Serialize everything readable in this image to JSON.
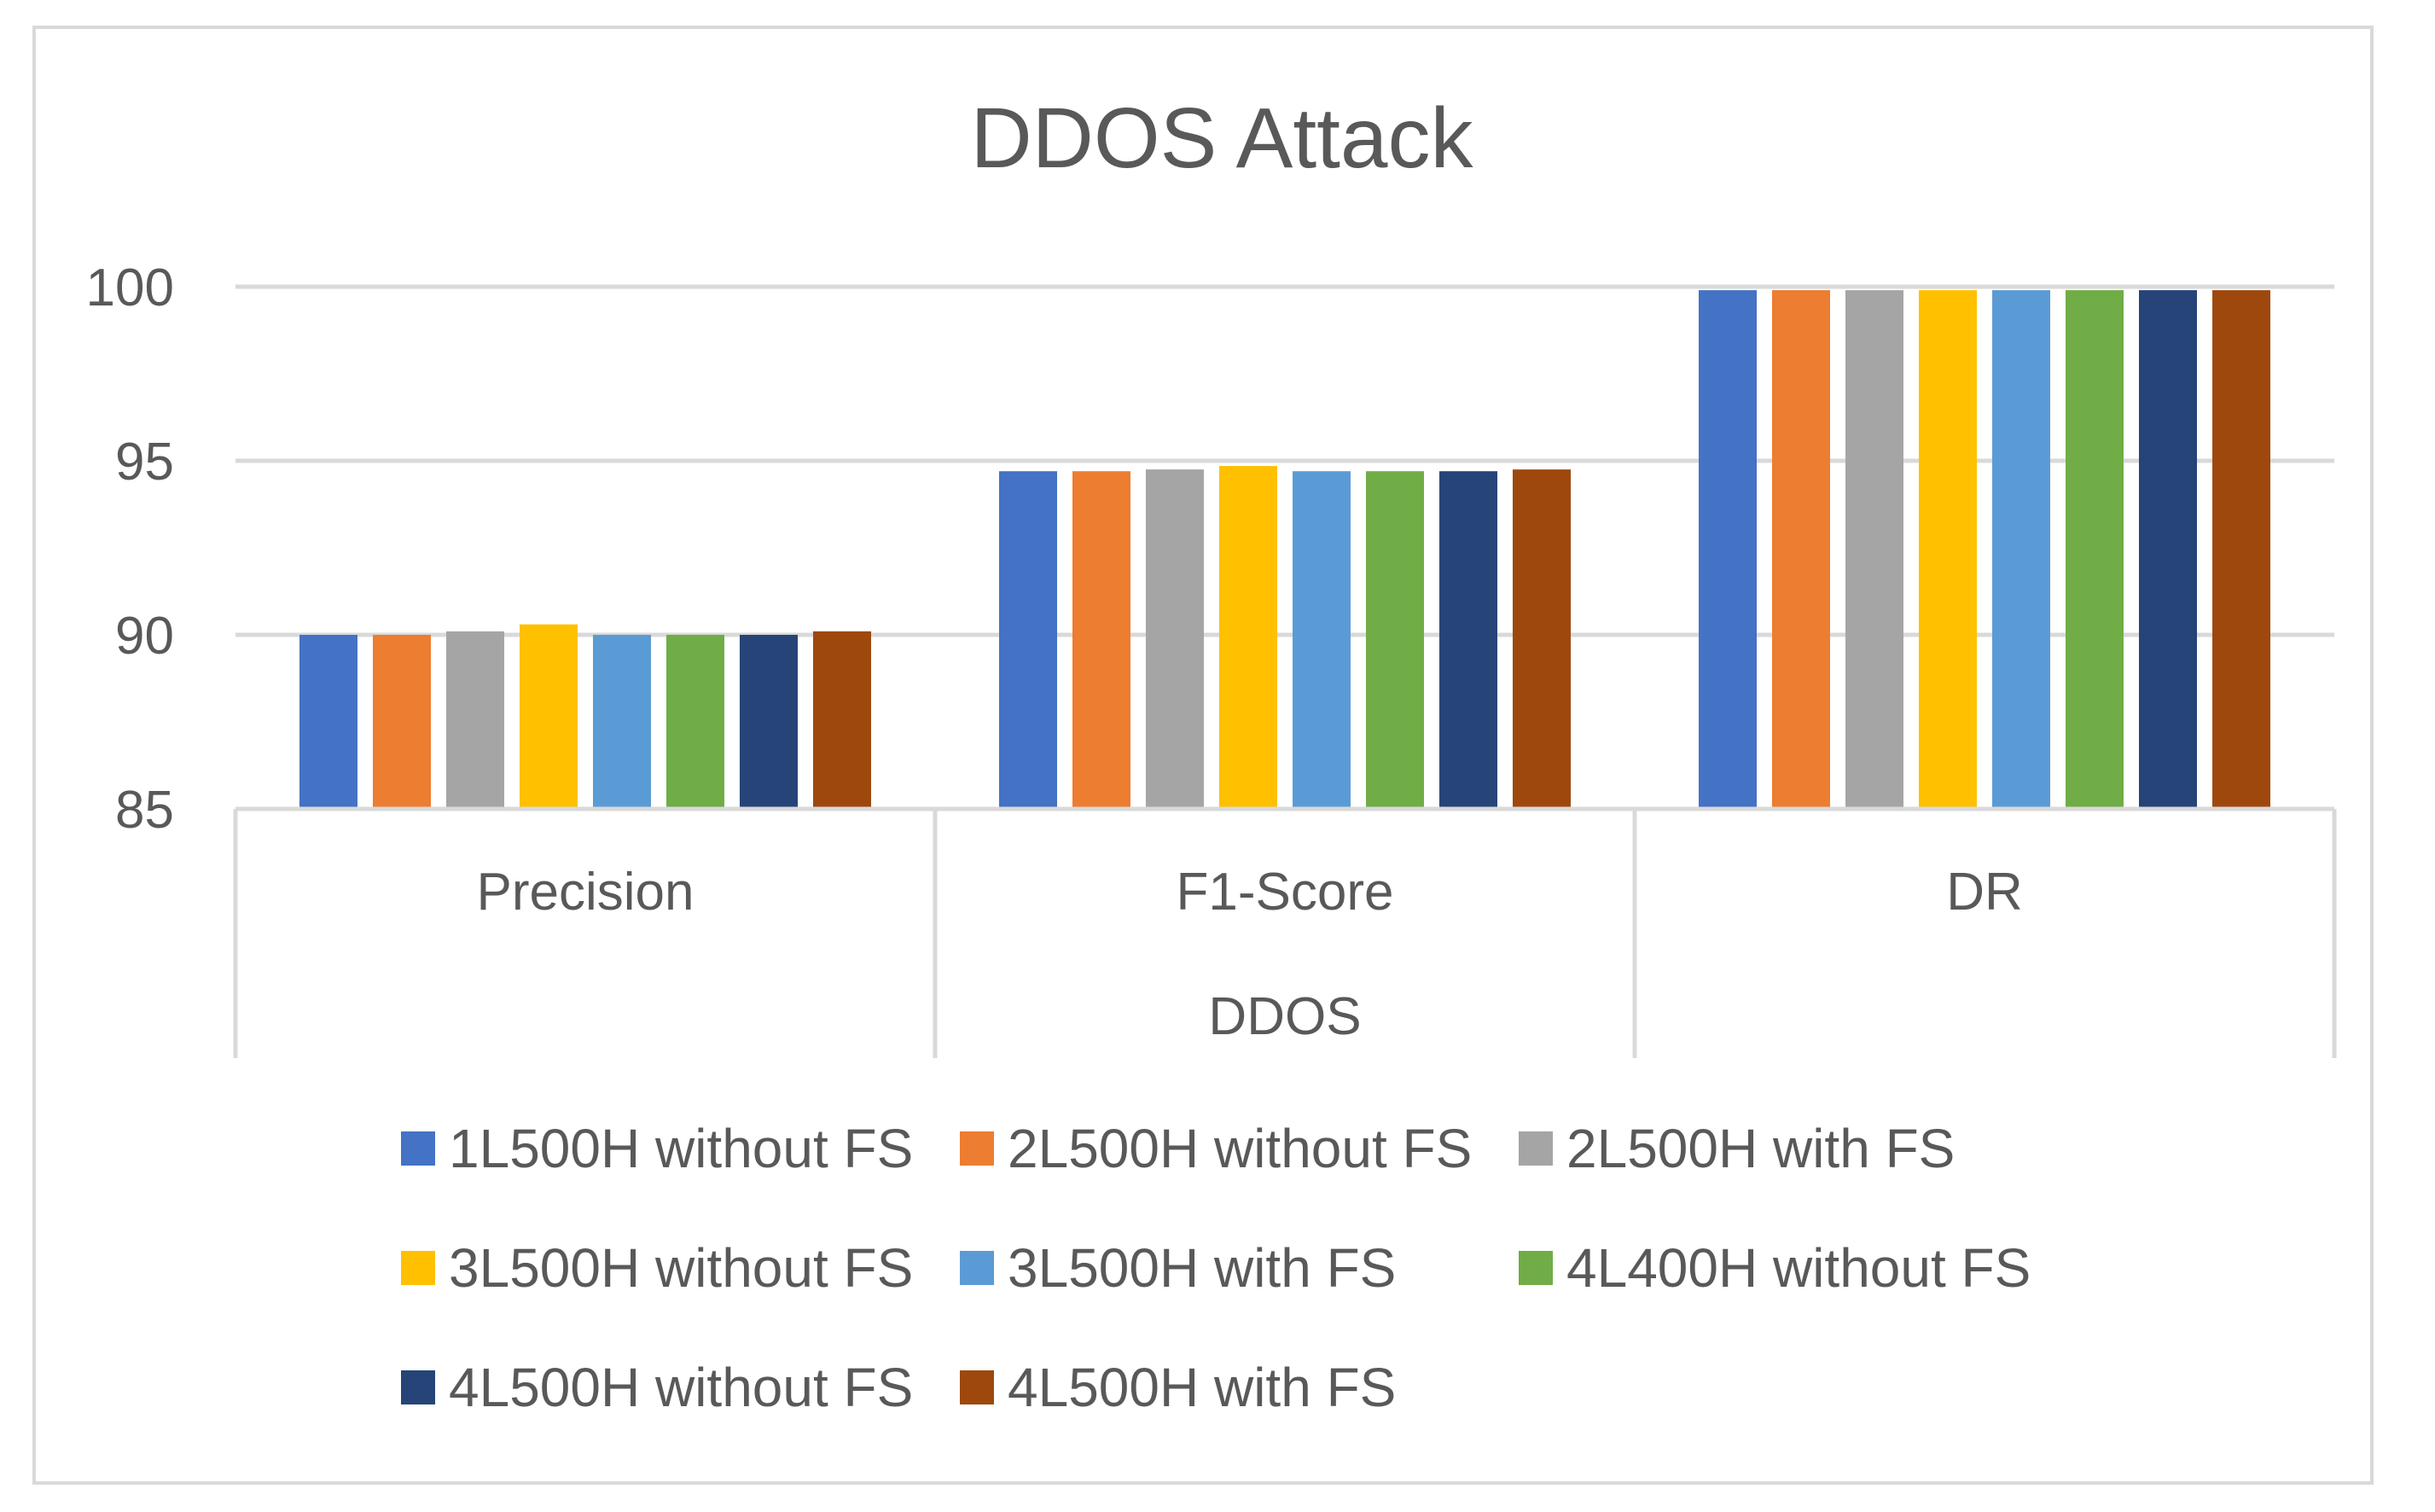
{
  "chart_data": {
    "type": "bar",
    "title": "DDOS Attack",
    "categories": [
      "Precision",
      "F1-Score",
      "DR"
    ],
    "xlabel": "DDOS",
    "ylabel": "",
    "ylim": [
      85,
      100
    ],
    "yticks": [
      "85",
      "90",
      "95",
      "100"
    ],
    "grid": true,
    "legend_position": "bottom",
    "series": [
      {
        "name": "1L500H without FS",
        "color": "#4472c4",
        "values": [
          90.0,
          94.7,
          99.9
        ]
      },
      {
        "name": "2L500H without FS",
        "color": "#ed7d31",
        "values": [
          90.0,
          94.7,
          99.9
        ]
      },
      {
        "name": "2L500H with FS",
        "color": "#a5a5a5",
        "values": [
          90.1,
          94.75,
          99.9
        ]
      },
      {
        "name": "3L500H without FS",
        "color": "#ffc000",
        "values": [
          90.3,
          94.85,
          99.9
        ]
      },
      {
        "name": "3L500H with FS",
        "color": "#5b9bd5",
        "values": [
          90.0,
          94.7,
          99.9
        ]
      },
      {
        "name": "4L400H without FS",
        "color": "#70ad47",
        "values": [
          90.0,
          94.7,
          99.9
        ]
      },
      {
        "name": "4L500H without FS",
        "color": "#264478",
        "values": [
          90.0,
          94.7,
          99.9
        ]
      },
      {
        "name": "4L500H with FS",
        "color": "#9e480e",
        "values": [
          90.1,
          94.75,
          99.9
        ]
      }
    ]
  }
}
